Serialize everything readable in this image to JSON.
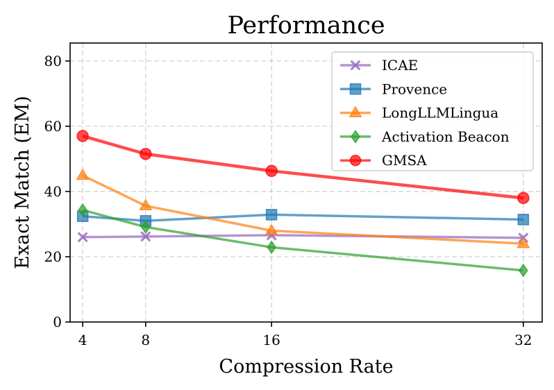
{
  "chart_data": {
    "type": "line",
    "title": "Performance",
    "xlabel": "Compression Rate",
    "ylabel": "Exact Match (EM)",
    "x": [
      4,
      8,
      16,
      32
    ],
    "x_ticks": [
      "4",
      "8",
      "16",
      "32"
    ],
    "xlim": [
      3.2,
      33.2
    ],
    "ylim": [
      0,
      85.5
    ],
    "y_ticks": [
      "0",
      "20",
      "40",
      "60",
      "80"
    ],
    "y_tick_values": [
      0,
      20,
      40,
      60,
      80
    ],
    "grid": true,
    "legend_position": "top-right",
    "series": [
      {
        "name": "ICAE",
        "color": "#9467bd",
        "marker": "x",
        "values": [
          26.0,
          26.2,
          26.6,
          25.8
        ]
      },
      {
        "name": "Provence",
        "color": "#1f77b4",
        "marker": "square",
        "values": [
          32.4,
          31.0,
          32.9,
          31.4
        ]
      },
      {
        "name": "LongLLMLingua",
        "color": "#ff7f0e",
        "marker": "triangle",
        "values": [
          44.9,
          35.6,
          28.0,
          24.0
        ]
      },
      {
        "name": "Activation Beacon",
        "color": "#2ca02c",
        "marker": "diamond",
        "values": [
          34.3,
          29.1,
          22.9,
          15.8
        ]
      },
      {
        "name": "GMSA",
        "color": "#ff0000",
        "marker": "circle",
        "values": [
          57.0,
          51.5,
          46.3,
          38.0
        ]
      }
    ]
  }
}
